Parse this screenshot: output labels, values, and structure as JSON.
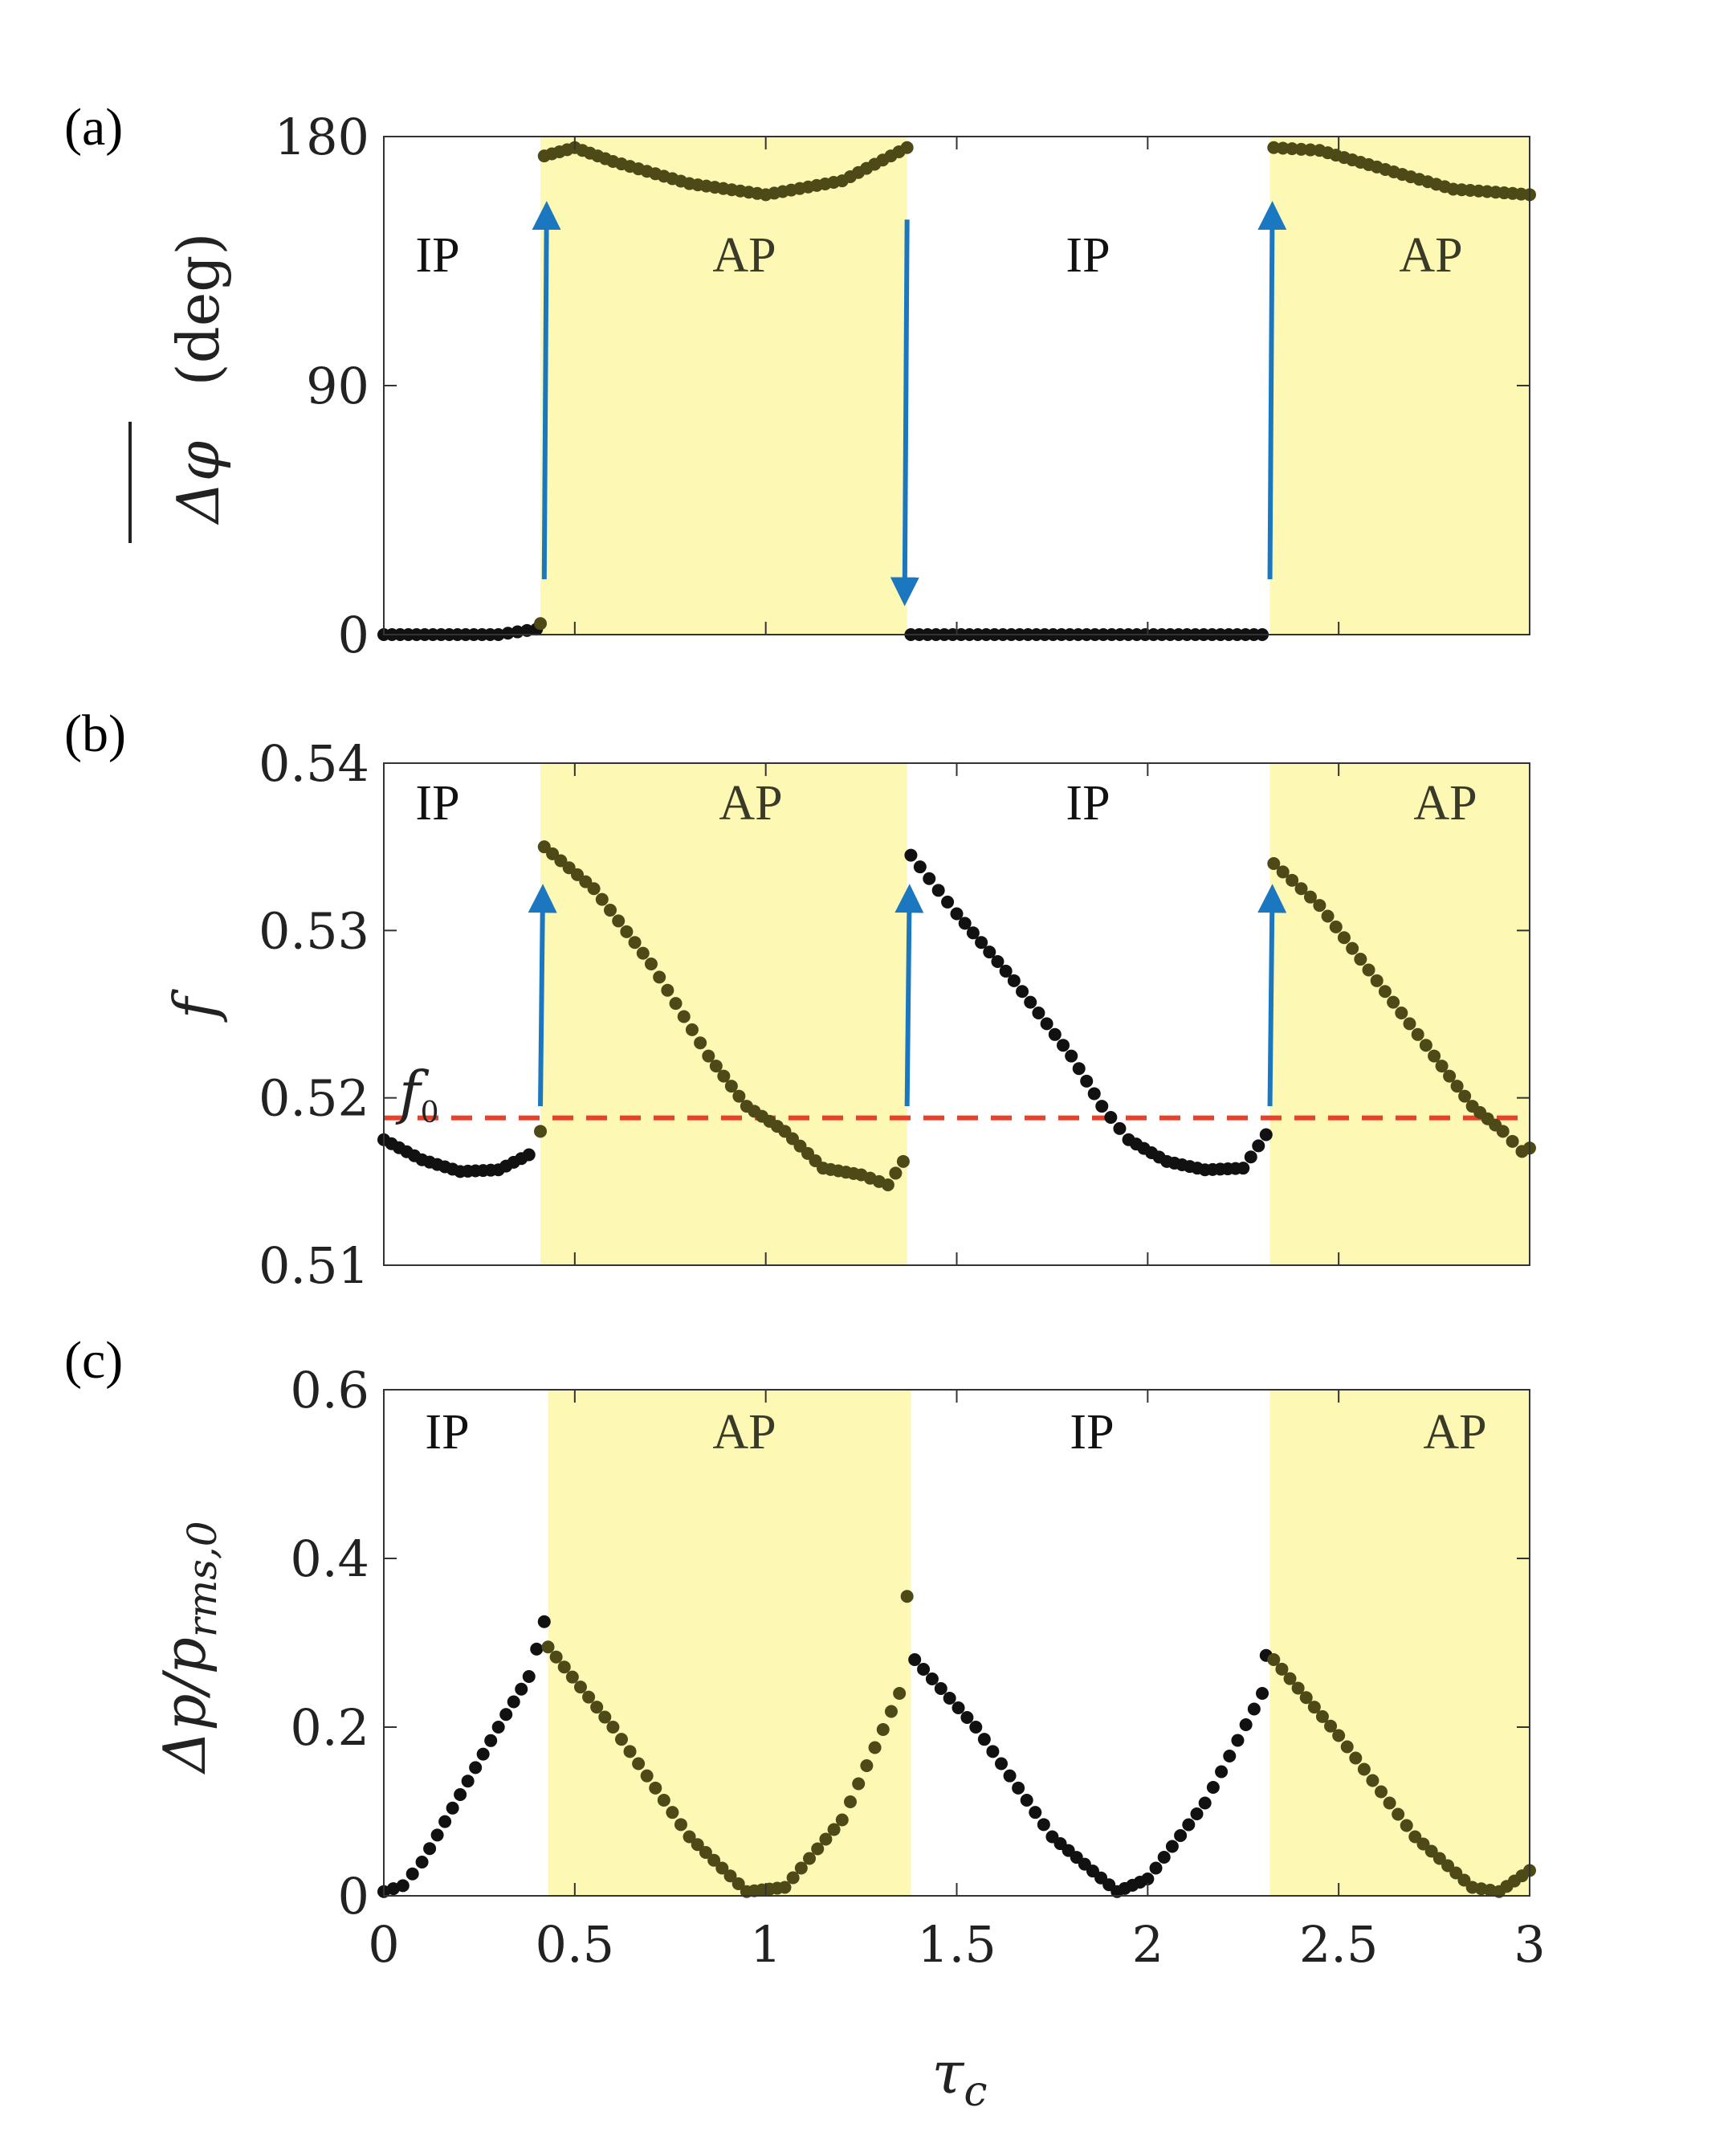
{
  "chart_data": [
    {
      "panel": "(a)",
      "type": "scatter",
      "ylabel_symbol": "Δφ",
      "ylabel_unit": "(deg)",
      "xlim": [
        0,
        3
      ],
      "ylim": [
        0,
        180
      ],
      "yticks": [
        0,
        90,
        180
      ],
      "ytick_labels": [
        "0",
        "90",
        "180"
      ],
      "regions": [
        {
          "label": "IP",
          "x0": 0,
          "x1": 0.41,
          "shaded": false
        },
        {
          "label": "AP",
          "x0": 0.41,
          "x1": 1.37,
          "shaded": true
        },
        {
          "label": "IP",
          "x0": 1.37,
          "x1": 2.32,
          "shaded": false
        },
        {
          "label": "AP",
          "x0": 2.32,
          "x1": 3.0,
          "shaded": true
        }
      ],
      "arrows": [
        {
          "x": 0.42,
          "from": 20,
          "to": 155
        },
        {
          "x": 1.37,
          "from": 150,
          "to": 12
        },
        {
          "x": 2.32,
          "from": 20,
          "to": 155
        }
      ],
      "series_segments": [
        {
          "x": [
            0,
            0.3,
            0.35,
            0.4,
            0.41
          ],
          "y": [
            0,
            0,
            1,
            2,
            4
          ]
        },
        {
          "x": [
            0.42,
            0.5,
            0.6,
            0.8,
            1.0,
            1.2,
            1.37
          ],
          "y": [
            173,
            176,
            171,
            163,
            159,
            164,
            176
          ]
        },
        {
          "x": [
            1.38,
            2.3
          ],
          "y": [
            0,
            0
          ]
        },
        {
          "x": [
            2.33,
            2.45,
            2.6,
            2.8,
            3.0
          ],
          "y": [
            176,
            175,
            169,
            161,
            159
          ]
        }
      ]
    },
    {
      "panel": "(b)",
      "type": "scatter",
      "ylabel": "f",
      "xlim": [
        0,
        3
      ],
      "ylim": [
        0.51,
        0.54
      ],
      "yticks": [
        0.51,
        0.52,
        0.53,
        0.54
      ],
      "ytick_labels": [
        "0.51",
        "0.52",
        "0.53",
        "0.54"
      ],
      "reference_line": {
        "label": "f0",
        "subscript": "0",
        "y": 0.5188,
        "color": "#e8402a"
      },
      "regions": [
        {
          "label": "IP",
          "x0": 0,
          "x1": 0.41,
          "shaded": false
        },
        {
          "label": "AP",
          "x0": 0.41,
          "x1": 1.37,
          "shaded": true
        },
        {
          "label": "IP",
          "x0": 1.37,
          "x1": 2.32,
          "shaded": false
        },
        {
          "label": "AP",
          "x0": 2.32,
          "x1": 3.0,
          "shaded": true
        }
      ],
      "arrows": [
        {
          "x": 0.41,
          "from": 0.5195,
          "to": 0.5325
        },
        {
          "x": 1.37,
          "from": 0.5195,
          "to": 0.5325
        },
        {
          "x": 2.32,
          "from": 0.5195,
          "to": 0.5325
        }
      ],
      "series_segments": [
        {
          "x": [
            0,
            0.1,
            0.2,
            0.3,
            0.38,
            0.41
          ],
          "y": [
            0.5175,
            0.5163,
            0.5156,
            0.5157,
            0.5166,
            0.518
          ]
        },
        {
          "x": [
            0.42,
            0.55,
            0.7,
            0.85,
            0.95,
            1.05,
            1.15,
            1.25,
            1.32,
            1.36
          ],
          "y": [
            0.535,
            0.5325,
            0.528,
            0.5225,
            0.5195,
            0.518,
            0.5158,
            0.5154,
            0.5148,
            0.5162
          ]
        },
        {
          "x": [
            1.38,
            1.5,
            1.65,
            1.8,
            1.88,
            1.95,
            2.05,
            2.15,
            2.25,
            2.31
          ],
          "y": [
            0.5345,
            0.531,
            0.527,
            0.5225,
            0.5195,
            0.5175,
            0.5162,
            0.5157,
            0.5158,
            0.5178
          ]
        },
        {
          "x": [
            2.33,
            2.45,
            2.6,
            2.75,
            2.85,
            2.93,
            2.98,
            3.0
          ],
          "y": [
            0.534,
            0.5315,
            0.527,
            0.5225,
            0.5195,
            0.518,
            0.5168,
            0.517
          ]
        }
      ]
    },
    {
      "panel": "(c)",
      "type": "scatter",
      "ylabel_main": "Δp/p",
      "ylabel_sub": "rms,0",
      "xlabel_main": "τ",
      "xlabel_sub": "c",
      "xlim": [
        0,
        3
      ],
      "ylim": [
        0,
        0.6
      ],
      "yticks": [
        0,
        0.2,
        0.4,
        0.6
      ],
      "ytick_labels": [
        "0",
        "0.2",
        "0.4",
        "0.6"
      ],
      "xticks": [
        0,
        0.5,
        1,
        1.5,
        2,
        2.5,
        3
      ],
      "xtick_labels": [
        "0",
        "0.5",
        "1",
        "1.5",
        "2",
        "2.5",
        "3"
      ],
      "regions": [
        {
          "label": "IP",
          "x0": 0,
          "x1": 0.43,
          "shaded": false
        },
        {
          "label": "AP",
          "x0": 0.43,
          "x1": 1.38,
          "shaded": true
        },
        {
          "label": "IP",
          "x0": 1.38,
          "x1": 2.32,
          "shaded": false
        },
        {
          "label": "AP",
          "x0": 2.32,
          "x1": 3.0,
          "shaded": true
        }
      ],
      "series_segments": [
        {
          "x": [
            0,
            0.05,
            0.1,
            0.2,
            0.3,
            0.38,
            0.42
          ],
          "y": [
            0.005,
            0.012,
            0.04,
            0.12,
            0.2,
            0.26,
            0.325
          ]
        },
        {
          "x": [
            0.43,
            0.6,
            0.8,
            0.95,
            1.05,
            1.2,
            1.35,
            1.37
          ],
          "y": [
            0.295,
            0.2,
            0.07,
            0.005,
            0.01,
            0.09,
            0.24,
            0.355
          ]
        },
        {
          "x": [
            1.39,
            1.55,
            1.75,
            1.92,
            2.0,
            2.15,
            2.3,
            2.31
          ],
          "y": [
            0.28,
            0.2,
            0.07,
            0.005,
            0.02,
            0.11,
            0.24,
            0.285
          ]
        },
        {
          "x": [
            2.33,
            2.5,
            2.7,
            2.85,
            2.92,
            3.0
          ],
          "y": [
            0.28,
            0.19,
            0.07,
            0.01,
            0.005,
            0.03
          ]
        }
      ]
    }
  ],
  "colors": {
    "shade": "#fdf8b4",
    "points_ip": "#111111",
    "points_ap": "#4d4a18",
    "arrow": "#1b78c0",
    "label_ap": "#3a3a28"
  }
}
